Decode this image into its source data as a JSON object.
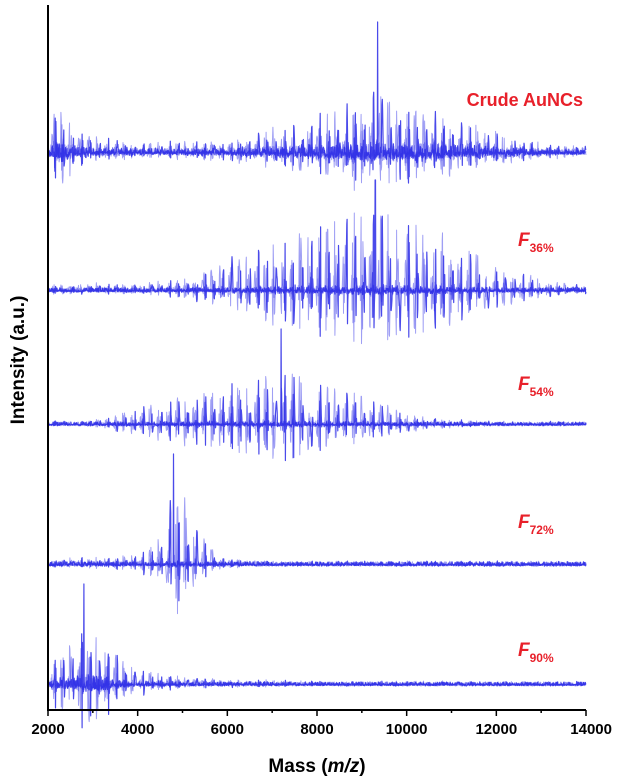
{
  "chart_data": {
    "type": "line",
    "xlabel": {
      "prefix": "Mass (",
      "italic": "m/z",
      "suffix": ")"
    },
    "ylabel": "Intensity (a.u.)",
    "xlim": [
      2000,
      14000
    ],
    "xticks": [
      2000,
      4000,
      6000,
      8000,
      10000,
      12000,
      14000
    ],
    "xtick_labels": [
      "2000",
      "4000",
      "6000",
      "8000",
      "10000",
      "12000",
      "14000"
    ],
    "yticks": "none",
    "grid": false,
    "line_color": "#2a2ae6",
    "label_color": "#e8202a",
    "stacking": "vertically offset spectra, top to bottom",
    "series": [
      {
        "name": "Crude AuNCs",
        "label": {
          "text": "Crude AuNCs"
        },
        "envelope": [
          [
            2000,
            0.18
          ],
          [
            2200,
            0.52
          ],
          [
            2600,
            0.24
          ],
          [
            3000,
            0.14
          ],
          [
            4000,
            0.08
          ],
          [
            5000,
            0.09
          ],
          [
            6000,
            0.12
          ],
          [
            7000,
            0.2
          ],
          [
            8000,
            0.32
          ],
          [
            9000,
            0.48
          ],
          [
            9400,
            0.55
          ],
          [
            10000,
            0.46
          ],
          [
            11000,
            0.33
          ],
          [
            12000,
            0.18
          ],
          [
            13000,
            0.08
          ],
          [
            14000,
            0.04
          ]
        ],
        "main_peak": {
          "x": 9350,
          "y": 1.0
        },
        "spacing": 197,
        "noise": 0.5
      },
      {
        "name": "F36%",
        "label": {
          "text": "F",
          "sub": "36%"
        },
        "envelope": [
          [
            2000,
            0.06
          ],
          [
            4000,
            0.06
          ],
          [
            5000,
            0.12
          ],
          [
            6000,
            0.34
          ],
          [
            7000,
            0.55
          ],
          [
            8000,
            0.76
          ],
          [
            9000,
            0.92
          ],
          [
            9300,
            1.0
          ],
          [
            10000,
            0.84
          ],
          [
            11000,
            0.58
          ],
          [
            12000,
            0.3
          ],
          [
            13000,
            0.12
          ],
          [
            14000,
            0.05
          ]
        ],
        "main_peak": {
          "x": 9300,
          "y": 1.0
        },
        "spacing": 197,
        "noise": 0.12
      },
      {
        "name": "F54%",
        "label": {
          "text": "F",
          "sub": "54%"
        },
        "envelope": [
          [
            2000,
            0.02
          ],
          [
            3000,
            0.04
          ],
          [
            4000,
            0.22
          ],
          [
            5000,
            0.38
          ],
          [
            6000,
            0.52
          ],
          [
            7000,
            0.68
          ],
          [
            7300,
            0.78
          ],
          [
            8000,
            0.56
          ],
          [
            9000,
            0.38
          ],
          [
            10000,
            0.16
          ],
          [
            11000,
            0.05
          ],
          [
            12000,
            0.02
          ],
          [
            14000,
            0.01
          ]
        ],
        "main_peak": {
          "x": 7200,
          "y": 1.0
        },
        "spacing": 197,
        "noise": 0.08
      },
      {
        "name": "F72%",
        "label": {
          "text": "F",
          "sub": "72%"
        },
        "envelope": [
          [
            2000,
            0.04
          ],
          [
            2300,
            0.05
          ],
          [
            3000,
            0.06
          ],
          [
            4000,
            0.1
          ],
          [
            4500,
            0.3
          ],
          [
            4800,
            0.85
          ],
          [
            5100,
            0.72
          ],
          [
            5400,
            0.35
          ],
          [
            5800,
            0.08
          ],
          [
            6500,
            0.03
          ],
          [
            8000,
            0.02
          ],
          [
            14000,
            0.01
          ]
        ],
        "main_peak": {
          "x": 4800,
          "y": 1.0
        },
        "spacing": 197,
        "noise": 0.05
      },
      {
        "name": "F90%",
        "label": {
          "text": "F",
          "sub": "90%"
        },
        "envelope": [
          [
            2000,
            0.25
          ],
          [
            2200,
            0.4
          ],
          [
            2600,
            0.55
          ],
          [
            2800,
            0.85
          ],
          [
            3000,
            0.75
          ],
          [
            3300,
            0.6
          ],
          [
            3600,
            0.3
          ],
          [
            4000,
            0.18
          ],
          [
            5000,
            0.08
          ],
          [
            6000,
            0.04
          ],
          [
            8000,
            0.02
          ],
          [
            14000,
            0.01
          ]
        ],
        "main_peak": {
          "x": 2800,
          "y": 1.0
        },
        "spacing": 197,
        "noise": 0.35
      }
    ]
  }
}
